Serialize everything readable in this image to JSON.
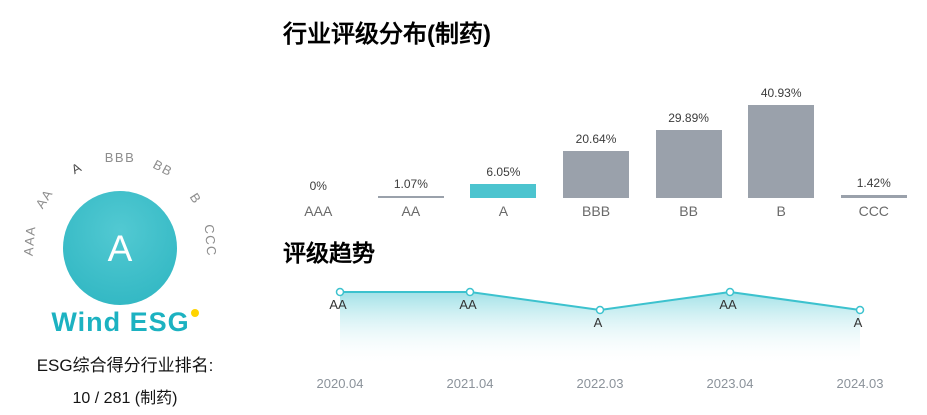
{
  "left_panel": {
    "gauge": {
      "current_rating": "A",
      "scale": [
        "AAA",
        "AA",
        "A",
        "BBB",
        "BB",
        "B",
        "CCC"
      ]
    },
    "logo_text": "Wind ESG",
    "ranking_label": "ESG综合得分行业排名:",
    "ranking_value": "10 / 281 (制药)"
  },
  "chart_data": [
    {
      "type": "bar",
      "title": "行业评级分布(制药)",
      "categories": [
        "AAA",
        "AA",
        "A",
        "BBB",
        "BB",
        "B",
        "CCC"
      ],
      "values": [
        0,
        1.07,
        6.05,
        20.64,
        29.89,
        40.93,
        1.42
      ],
      "value_labels": [
        "0%",
        "1.07%",
        "6.05%",
        "20.64%",
        "29.89%",
        "40.93%",
        "1.42%"
      ],
      "highlight_index": 2,
      "highlight_category": "A",
      "bar_color": "#9aa1ab",
      "highlight_color": "#4cc4cf",
      "xlabel": "",
      "ylabel": "",
      "ylim": [
        0,
        45
      ],
      "grid": false,
      "legend": false
    },
    {
      "type": "area",
      "title": "评级趋势",
      "x": [
        "2020.04",
        "2021.04",
        "2022.03",
        "2023.04",
        "2024.03"
      ],
      "ratings": [
        "AA",
        "AA",
        "A",
        "AA",
        "A"
      ],
      "line_color": "#3cc2ce",
      "marker": "hollow-circle",
      "fill": "teal-to-white-gradient",
      "grid": false,
      "legend": false
    }
  ],
  "colors": {
    "teal": "#3fbfca",
    "gray_bar": "#9aa1ab",
    "accent_yellow": "#ffd400",
    "logo_teal": "#1cb2c1"
  }
}
